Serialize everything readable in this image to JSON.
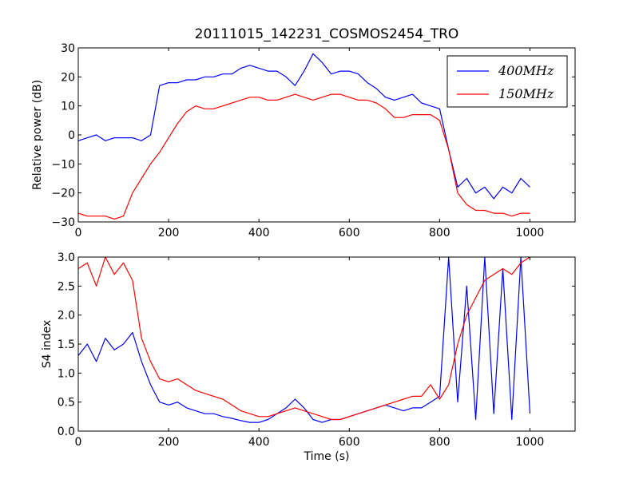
{
  "colors": {
    "s400": "#0000ff",
    "s150": "#ff0000",
    "axes": "#000000",
    "background": "#ffffff"
  },
  "chart_data": [
    {
      "type": "line",
      "title": "20111015_142231_COSMOS2454_TRO",
      "xlabel": "",
      "ylabel": "Relative power (dB)",
      "xlim": [
        0,
        1100
      ],
      "ylim": [
        -30,
        30
      ],
      "xticks": [
        0,
        200,
        400,
        600,
        800,
        1000
      ],
      "yticks": [
        -30,
        -20,
        -10,
        0,
        10,
        20,
        30
      ],
      "xtick_labels": [
        "0",
        "200",
        "400",
        "600",
        "800",
        "1000"
      ],
      "ytick_labels": [
        "−30",
        "−20",
        "−10",
        "0",
        "10",
        "20",
        "30"
      ],
      "legend": {
        "position": "top-right",
        "entries": [
          "400MHz",
          "150MHz"
        ]
      },
      "series": [
        {
          "name": "400MHz",
          "color": "#0000ff",
          "x": [
            0,
            20,
            40,
            60,
            80,
            100,
            120,
            140,
            160,
            180,
            200,
            220,
            240,
            260,
            280,
            300,
            320,
            340,
            360,
            380,
            400,
            420,
            440,
            460,
            480,
            500,
            520,
            540,
            560,
            580,
            600,
            620,
            640,
            660,
            680,
            700,
            720,
            740,
            760,
            780,
            800,
            820,
            840,
            860,
            880,
            900,
            920,
            940,
            960,
            980,
            1000
          ],
          "y": [
            -2,
            -1,
            0,
            -2,
            -1,
            -1,
            -1,
            -2,
            0,
            17,
            18,
            18,
            19,
            19,
            20,
            20,
            21,
            21,
            23,
            24,
            23,
            22,
            22,
            20,
            17,
            22,
            28,
            25,
            21,
            22,
            22,
            21,
            18,
            16,
            13,
            12,
            13,
            14,
            11,
            10,
            9,
            -5,
            -18,
            -15,
            -20,
            -18,
            -22,
            -18,
            -20,
            -15,
            -18
          ]
        },
        {
          "name": "150MHz",
          "color": "#ff0000",
          "x": [
            0,
            20,
            40,
            60,
            80,
            100,
            120,
            140,
            160,
            180,
            200,
            220,
            240,
            260,
            280,
            300,
            320,
            340,
            360,
            380,
            400,
            420,
            440,
            460,
            480,
            500,
            520,
            540,
            560,
            580,
            600,
            620,
            640,
            660,
            680,
            700,
            720,
            740,
            760,
            780,
            800,
            820,
            840,
            860,
            880,
            900,
            920,
            940,
            960,
            980,
            1000
          ],
          "y": [
            -27,
            -28,
            -28,
            -28,
            -29,
            -28,
            -20,
            -15,
            -10,
            -6,
            -1,
            4,
            8,
            10,
            9,
            9,
            10,
            11,
            12,
            13,
            13,
            12,
            12,
            13,
            14,
            13,
            12,
            13,
            14,
            14,
            13,
            12,
            12,
            11,
            9,
            6,
            6,
            7,
            7,
            7,
            5,
            -5,
            -20,
            -24,
            -26,
            -26,
            -27,
            -27,
            -28,
            -27,
            -27
          ]
        }
      ]
    },
    {
      "type": "line",
      "title": "",
      "xlabel": "Time (s)",
      "ylabel": "S4 index",
      "xlim": [
        0,
        1100
      ],
      "ylim": [
        0,
        3
      ],
      "xticks": [
        0,
        200,
        400,
        600,
        800,
        1000
      ],
      "yticks": [
        0,
        0.5,
        1,
        1.5,
        2,
        2.5,
        3
      ],
      "xtick_labels": [
        "0",
        "200",
        "400",
        "600",
        "800",
        "1000"
      ],
      "ytick_labels": [
        "0.0",
        "0.5",
        "1.0",
        "1.5",
        "2.0",
        "2.5",
        "3.0"
      ],
      "series": [
        {
          "color": "#0000ff",
          "x": [
            0,
            20,
            40,
            60,
            80,
            100,
            120,
            140,
            160,
            180,
            200,
            220,
            240,
            260,
            280,
            300,
            320,
            340,
            360,
            380,
            400,
            420,
            440,
            460,
            480,
            500,
            520,
            540,
            560,
            580,
            600,
            620,
            640,
            660,
            680,
            700,
            720,
            740,
            760,
            780,
            800,
            820,
            840,
            860,
            880,
            900,
            920,
            940,
            960,
            980,
            1000
          ],
          "y": [
            1.3,
            1.5,
            1.2,
            1.6,
            1.4,
            1.5,
            1.7,
            1.2,
            0.8,
            0.5,
            0.45,
            0.5,
            0.4,
            0.35,
            0.3,
            0.3,
            0.25,
            0.22,
            0.18,
            0.15,
            0.15,
            0.2,
            0.3,
            0.4,
            0.55,
            0.4,
            0.2,
            0.15,
            0.2,
            0.2,
            0.25,
            0.3,
            0.35,
            0.4,
            0.45,
            0.4,
            0.35,
            0.4,
            0.4,
            0.5,
            0.6,
            3.0,
            0.5,
            2.5,
            0.2,
            3.0,
            0.3,
            2.8,
            0.2,
            3.0,
            0.3
          ]
        },
        {
          "color": "#ff0000",
          "x": [
            0,
            20,
            40,
            60,
            80,
            100,
            120,
            140,
            160,
            180,
            200,
            220,
            240,
            260,
            280,
            300,
            320,
            340,
            360,
            380,
            400,
            420,
            440,
            460,
            480,
            500,
            520,
            540,
            560,
            580,
            600,
            620,
            640,
            660,
            680,
            700,
            720,
            740,
            760,
            780,
            800,
            820,
            840,
            860,
            880,
            900,
            920,
            940,
            960,
            980,
            1000
          ],
          "y": [
            2.8,
            2.9,
            2.5,
            3.0,
            2.7,
            2.9,
            2.6,
            1.6,
            1.2,
            0.9,
            0.85,
            0.9,
            0.8,
            0.7,
            0.65,
            0.6,
            0.55,
            0.45,
            0.35,
            0.3,
            0.25,
            0.25,
            0.3,
            0.35,
            0.4,
            0.35,
            0.3,
            0.25,
            0.2,
            0.2,
            0.25,
            0.3,
            0.35,
            0.4,
            0.45,
            0.5,
            0.55,
            0.6,
            0.6,
            0.8,
            0.55,
            0.8,
            1.5,
            2.0,
            2.3,
            2.6,
            2.7,
            2.8,
            2.7,
            2.9,
            3.0
          ]
        }
      ]
    }
  ]
}
